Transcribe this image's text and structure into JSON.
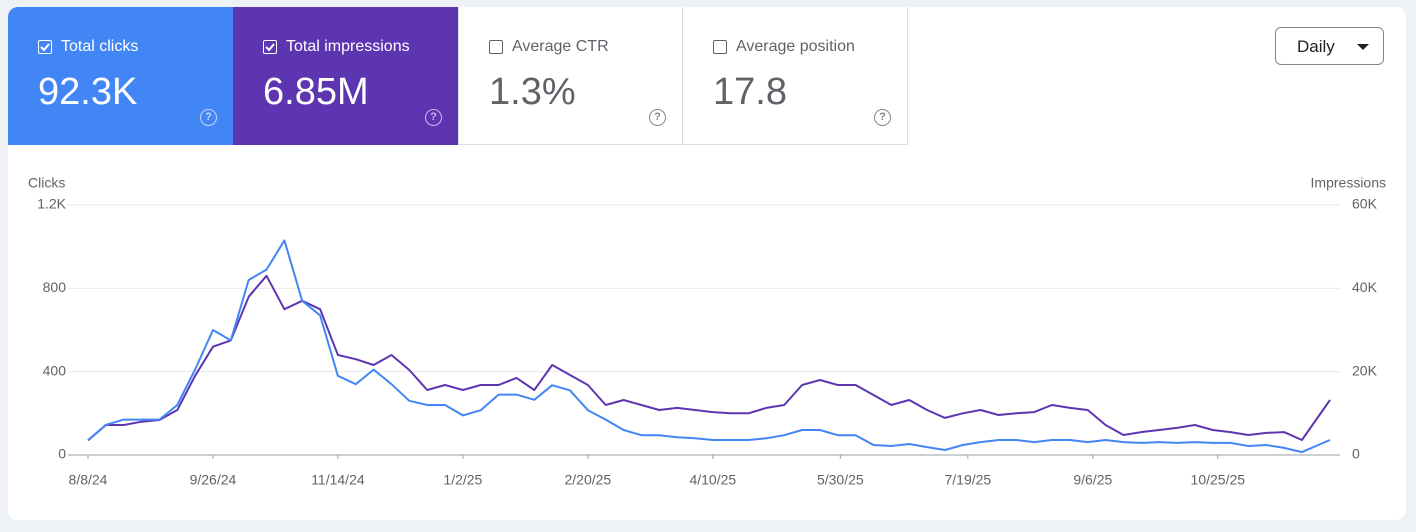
{
  "cards": [
    {
      "label": "Total clicks",
      "value": "92.3K"
    },
    {
      "label": "Total impressions",
      "value": "6.85M"
    },
    {
      "label": "Average CTR",
      "value": "1.3%"
    },
    {
      "label": "Average position",
      "value": "17.8"
    }
  ],
  "granularity": "Daily",
  "chart_data": {
    "type": "line",
    "y_label": "Clicks",
    "y2_label": "Impressions",
    "x": [
      "8/8/24",
      "8/15/24",
      "8/22/24",
      "8/29/24",
      "9/5/24",
      "9/12/24",
      "9/19/24",
      "9/26/24",
      "10/3/24",
      "10/10/24",
      "10/17/24",
      "10/24/24",
      "10/31/24",
      "11/7/24",
      "11/14/24",
      "11/21/24",
      "11/28/24",
      "12/5/24",
      "12/12/24",
      "12/19/24",
      "12/26/24",
      "1/2/25",
      "1/9/25",
      "1/16/25",
      "1/23/25",
      "1/30/25",
      "2/6/25",
      "2/13/25",
      "2/20/25",
      "2/27/25",
      "3/6/25",
      "3/13/25",
      "3/20/25",
      "3/27/25",
      "4/3/25",
      "4/10/25",
      "4/17/25",
      "4/24/25",
      "5/1/25",
      "5/8/25",
      "5/15/25",
      "5/22/25",
      "5/29/25",
      "6/5/25",
      "6/12/25",
      "6/19/25",
      "6/26/25",
      "7/3/25",
      "7/10/25",
      "7/17/25",
      "7/24/25",
      "7/31/25",
      "8/7/25",
      "8/14/25",
      "8/21/25",
      "8/28/25",
      "9/4/25",
      "9/11/25",
      "9/18/25",
      "9/25/25",
      "10/2/25",
      "10/9/25",
      "10/16/25",
      "10/23/25",
      "10/30/25",
      "11/6/25",
      "11/13/25",
      "11/20/25",
      "11/27/25",
      "12/8/25"
    ],
    "series": [
      {
        "name": "Total clicks",
        "color": "#4285f4",
        "values": [
          70,
          145,
          170,
          170,
          170,
          240,
          410,
          600,
          550,
          840,
          890,
          1030,
          740,
          670,
          380,
          340,
          410,
          340,
          260,
          240,
          240,
          190,
          215,
          290,
          290,
          265,
          335,
          310,
          215,
          170,
          120,
          95,
          95,
          85,
          80,
          72,
          72,
          72,
          80,
          95,
          120,
          120,
          95,
          95,
          48,
          43,
          53,
          38,
          24,
          48,
          62,
          72,
          72,
          62,
          72,
          72,
          62,
          72,
          62,
          58,
          62,
          58,
          62,
          58,
          58,
          43,
          48,
          34,
          14,
          72
        ]
      },
      {
        "name": "Total impressions",
        "color": "#5e35b1",
        "axis": "y2",
        "values": [
          3500,
          7200,
          7200,
          8000,
          8400,
          10800,
          19000,
          26000,
          27500,
          38000,
          43000,
          35000,
          37000,
          35000,
          24000,
          23000,
          21600,
          24000,
          20400,
          15600,
          16800,
          15600,
          16800,
          16800,
          18500,
          15600,
          21600,
          19200,
          16800,
          12000,
          13200,
          12000,
          10800,
          11300,
          10800,
          10300,
          10000,
          10000,
          11300,
          12000,
          16800,
          18000,
          16800,
          16800,
          14400,
          12000,
          13200,
          10800,
          8900,
          10000,
          10800,
          9600,
          10000,
          10300,
          12000,
          11300,
          10800,
          7200,
          4800,
          5500,
          6000,
          6500,
          7200,
          6000,
          5500,
          4800,
          5300,
          5500,
          3600,
          13200
        ]
      }
    ],
    "xlim": [
      "8/8/24",
      "12/8/25"
    ],
    "xticks": [
      "8/8/24",
      "9/26/24",
      "11/14/24",
      "1/2/25",
      "2/20/25",
      "4/10/25",
      "5/30/25",
      "7/19/25",
      "9/6/25",
      "10/25/25"
    ],
    "ylim": [
      0,
      1200
    ],
    "yticks": [
      0,
      400,
      800,
      {
        "value": 1200,
        "label": "1.2K"
      }
    ],
    "y2lim": [
      0,
      60000
    ],
    "y2ticks": [
      0,
      {
        "value": 20000,
        "label": "20K"
      },
      {
        "value": 40000,
        "label": "40K"
      },
      {
        "value": 60000,
        "label": "60K"
      }
    ],
    "grid": true
  }
}
